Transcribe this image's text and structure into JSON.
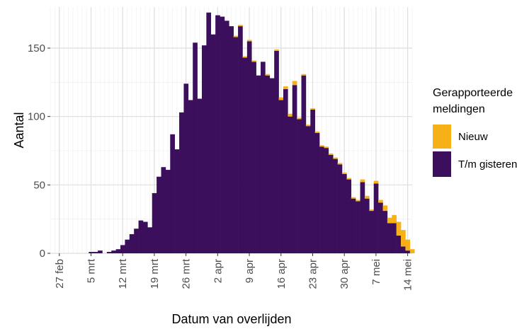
{
  "chart_data": {
    "type": "bar",
    "stacked": true,
    "xlabel": "Datum van overlijden",
    "ylabel": "Aantal",
    "ylim": [
      0,
      180
    ],
    "y_ticks": [
      0,
      50,
      100,
      150
    ],
    "x_ticks": [
      "27 feb",
      "5 mrt",
      "12 mrt",
      "19 mrt",
      "26 mrt",
      "2 apr",
      "9 apr",
      "16 apr",
      "23 apr",
      "30 apr",
      "7 mei",
      "14 mei"
    ],
    "x_tick_day_index": [
      0,
      7,
      14,
      21,
      28,
      35,
      42,
      49,
      56,
      63,
      70,
      77
    ],
    "x_range_days": [
      -2,
      78
    ],
    "grid": true,
    "legend": {
      "title_lines": [
        "Gerapporteerde",
        "meldingen"
      ],
      "placement": "right"
    },
    "bar_start_day": 7,
    "series": [
      {
        "name": "T/m gisteren",
        "color": "#3b0f5c",
        "values": [
          1,
          1,
          2,
          0,
          1,
          2,
          3,
          6,
          10,
          14,
          18,
          24,
          23,
          19,
          44,
          56,
          63,
          61,
          87,
          76,
          103,
          124,
          112,
          154,
          113,
          152,
          176,
          160,
          174,
          173,
          170,
          166,
          158,
          166,
          143,
          155,
          140,
          130,
          140,
          130,
          128,
          148,
          112,
          120,
          100,
          123,
          98,
          130,
          93,
          105,
          88,
          78,
          77,
          72,
          69,
          65,
          58,
          54,
          40,
          38,
          52,
          40,
          31,
          51,
          37,
          31,
          22,
          22,
          13,
          5,
          2,
          0
        ]
      },
      {
        "name": "Nieuw",
        "color": "#f5b117",
        "values": [
          0,
          0,
          0,
          0,
          0,
          0,
          0,
          0,
          0,
          0,
          0,
          0,
          0,
          0,
          0,
          0,
          0,
          0,
          0,
          0,
          0,
          0,
          0,
          0,
          0,
          0,
          0,
          0,
          0,
          0,
          0,
          0,
          1,
          1,
          1,
          1,
          1,
          0,
          0,
          1,
          0,
          1,
          2,
          2,
          2,
          3,
          1,
          1,
          1,
          1,
          1,
          1,
          1,
          1,
          1,
          1,
          1,
          1,
          1,
          1,
          2,
          2,
          1,
          2,
          2,
          4,
          4,
          6,
          10,
          12,
          8,
          3
        ]
      }
    ]
  }
}
